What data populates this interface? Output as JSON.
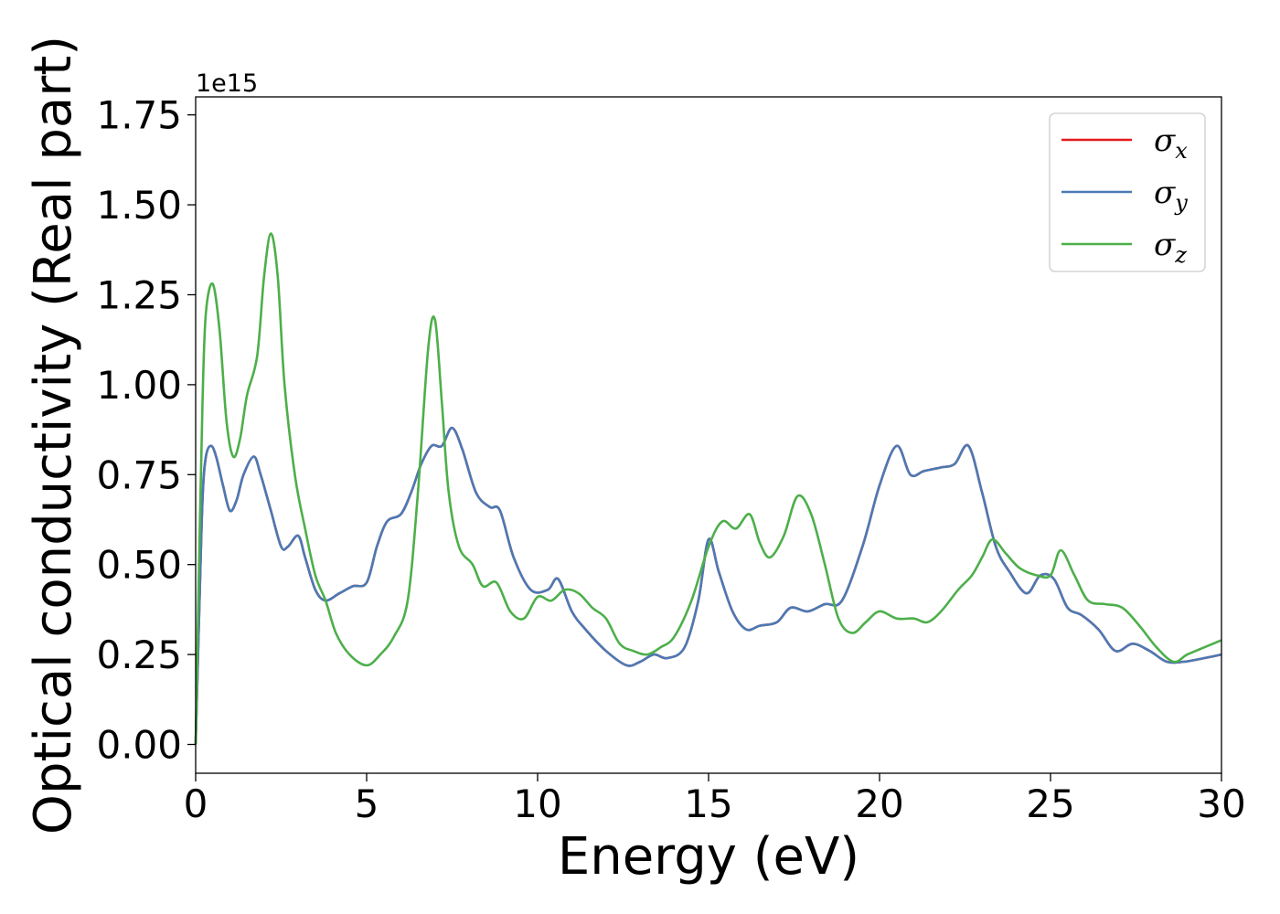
{
  "chart_data": {
    "type": "line",
    "xlabel": "Energy (eV)",
    "ylabel": "Optical conductivity (Real part)",
    "y_offset_label": "1e15",
    "xlim": [
      0,
      30
    ],
    "ylim": [
      -0.08,
      1.8
    ],
    "x_ticks": [
      0,
      5,
      10,
      15,
      20,
      25,
      30
    ],
    "x_tick_labels": [
      "0",
      "5",
      "10",
      "15",
      "20",
      "25",
      "30"
    ],
    "y_ticks": [
      0,
      0.25,
      0.5,
      0.75,
      1.0,
      1.25,
      1.5,
      1.75
    ],
    "y_tick_labels": [
      "0.00",
      "0.25",
      "0.50",
      "0.75",
      "1.00",
      "1.25",
      "1.50",
      "1.75"
    ],
    "grid": false,
    "legend_position": "top-right",
    "legend": [
      {
        "symbol": "σ",
        "subscript": "x",
        "color": "#e41a1c"
      },
      {
        "symbol": "σ",
        "subscript": "y",
        "color": "#4a7ab5"
      },
      {
        "symbol": "σ",
        "subscript": "z",
        "color": "#4daf4a"
      }
    ],
    "series": [
      {
        "key": "sigma_x",
        "color": "#e41a1c",
        "x": [
          0,
          0.1,
          0.2,
          0.3,
          0.45,
          0.6,
          0.8,
          1.0,
          1.2,
          1.4,
          1.7,
          1.9,
          2.2,
          2.5,
          2.7,
          3.0,
          3.2,
          3.5,
          3.8,
          4.2,
          4.6,
          5.0,
          5.3,
          5.6,
          6.0,
          6.3,
          6.6,
          6.9,
          7.2,
          7.5,
          7.8,
          8.2,
          8.6,
          8.9,
          9.3,
          9.8,
          10.3,
          10.6,
          11.0,
          11.4,
          12.0,
          12.6,
          13.0,
          13.4,
          13.8,
          14.3,
          14.7,
          15.0,
          15.3,
          15.7,
          16.1,
          16.5,
          17.0,
          17.4,
          17.9,
          18.4,
          18.9,
          19.5,
          20.0,
          20.5,
          20.9,
          21.3,
          21.8,
          22.2,
          22.6,
          23.0,
          23.4,
          23.8,
          24.3,
          24.7,
          25.1,
          25.5,
          25.9,
          26.4,
          26.9,
          27.4,
          27.9,
          28.4,
          28.9,
          29.5,
          30.0
        ],
        "values": [
          0.0,
          0.35,
          0.68,
          0.8,
          0.83,
          0.8,
          0.72,
          0.65,
          0.68,
          0.75,
          0.8,
          0.75,
          0.65,
          0.55,
          0.55,
          0.58,
          0.52,
          0.43,
          0.4,
          0.42,
          0.44,
          0.45,
          0.55,
          0.62,
          0.64,
          0.7,
          0.78,
          0.83,
          0.83,
          0.88,
          0.82,
          0.7,
          0.66,
          0.65,
          0.52,
          0.43,
          0.43,
          0.46,
          0.37,
          0.32,
          0.26,
          0.22,
          0.23,
          0.25,
          0.24,
          0.27,
          0.4,
          0.57,
          0.48,
          0.37,
          0.32,
          0.33,
          0.34,
          0.38,
          0.37,
          0.39,
          0.4,
          0.55,
          0.72,
          0.83,
          0.75,
          0.76,
          0.77,
          0.78,
          0.83,
          0.7,
          0.55,
          0.48,
          0.42,
          0.47,
          0.46,
          0.38,
          0.36,
          0.32,
          0.26,
          0.28,
          0.26,
          0.23,
          0.23,
          0.24,
          0.25
        ]
      },
      {
        "key": "sigma_y",
        "color": "#4a7ab5",
        "x": [
          0,
          0.1,
          0.2,
          0.3,
          0.45,
          0.6,
          0.8,
          1.0,
          1.2,
          1.4,
          1.7,
          1.9,
          2.2,
          2.5,
          2.7,
          3.0,
          3.2,
          3.5,
          3.8,
          4.2,
          4.6,
          5.0,
          5.3,
          5.6,
          6.0,
          6.3,
          6.6,
          6.9,
          7.2,
          7.5,
          7.8,
          8.2,
          8.6,
          8.9,
          9.3,
          9.8,
          10.3,
          10.6,
          11.0,
          11.4,
          12.0,
          12.6,
          13.0,
          13.4,
          13.8,
          14.3,
          14.7,
          15.0,
          15.3,
          15.7,
          16.1,
          16.5,
          17.0,
          17.4,
          17.9,
          18.4,
          18.9,
          19.5,
          20.0,
          20.5,
          20.9,
          21.3,
          21.8,
          22.2,
          22.6,
          23.0,
          23.4,
          23.8,
          24.3,
          24.7,
          25.1,
          25.5,
          25.9,
          26.4,
          26.9,
          27.4,
          27.9,
          28.4,
          28.9,
          29.5,
          30.0
        ],
        "values": [
          0.0,
          0.35,
          0.68,
          0.8,
          0.83,
          0.8,
          0.72,
          0.65,
          0.68,
          0.75,
          0.8,
          0.75,
          0.65,
          0.55,
          0.55,
          0.58,
          0.52,
          0.43,
          0.4,
          0.42,
          0.44,
          0.45,
          0.55,
          0.62,
          0.64,
          0.7,
          0.78,
          0.83,
          0.83,
          0.88,
          0.82,
          0.7,
          0.66,
          0.65,
          0.52,
          0.43,
          0.43,
          0.46,
          0.37,
          0.32,
          0.26,
          0.22,
          0.23,
          0.25,
          0.24,
          0.27,
          0.4,
          0.57,
          0.48,
          0.37,
          0.32,
          0.33,
          0.34,
          0.38,
          0.37,
          0.39,
          0.4,
          0.55,
          0.72,
          0.83,
          0.75,
          0.76,
          0.77,
          0.78,
          0.83,
          0.7,
          0.55,
          0.48,
          0.42,
          0.47,
          0.46,
          0.38,
          0.36,
          0.32,
          0.26,
          0.28,
          0.26,
          0.23,
          0.23,
          0.24,
          0.25
        ]
      },
      {
        "key": "sigma_z",
        "color": "#4daf4a",
        "x": [
          0,
          0.1,
          0.2,
          0.3,
          0.5,
          0.7,
          0.9,
          1.1,
          1.3,
          1.5,
          1.8,
          2.0,
          2.2,
          2.4,
          2.6,
          2.9,
          3.2,
          3.5,
          3.8,
          4.1,
          4.5,
          5.0,
          5.4,
          5.8,
          6.2,
          6.5,
          6.8,
          7.0,
          7.2,
          7.4,
          7.7,
          8.1,
          8.4,
          8.8,
          9.2,
          9.6,
          10.0,
          10.4,
          10.8,
          11.2,
          11.6,
          12.0,
          12.4,
          12.8,
          13.2,
          13.6,
          14.0,
          14.5,
          15.0,
          15.4,
          15.8,
          16.2,
          16.5,
          16.8,
          17.2,
          17.6,
          18.0,
          18.4,
          18.8,
          19.2,
          19.6,
          20.0,
          20.5,
          21.0,
          21.4,
          21.8,
          22.3,
          22.7,
          23.0,
          23.3,
          23.7,
          24.1,
          24.6,
          25.0,
          25.3,
          25.7,
          26.1,
          26.6,
          27.1,
          27.6,
          28.1,
          28.6,
          29.0,
          29.5,
          30.0
        ],
        "values": [
          0.0,
          0.5,
          0.95,
          1.2,
          1.28,
          1.15,
          0.9,
          0.8,
          0.85,
          0.97,
          1.08,
          1.3,
          1.42,
          1.3,
          1.0,
          0.75,
          0.6,
          0.47,
          0.4,
          0.31,
          0.25,
          0.22,
          0.25,
          0.3,
          0.4,
          0.7,
          1.1,
          1.18,
          0.95,
          0.7,
          0.55,
          0.5,
          0.44,
          0.45,
          0.37,
          0.35,
          0.41,
          0.4,
          0.43,
          0.42,
          0.38,
          0.35,
          0.28,
          0.26,
          0.25,
          0.27,
          0.3,
          0.4,
          0.55,
          0.62,
          0.6,
          0.64,
          0.56,
          0.52,
          0.58,
          0.69,
          0.64,
          0.5,
          0.35,
          0.31,
          0.34,
          0.37,
          0.35,
          0.35,
          0.34,
          0.37,
          0.43,
          0.47,
          0.52,
          0.57,
          0.53,
          0.49,
          0.47,
          0.47,
          0.54,
          0.47,
          0.4,
          0.39,
          0.38,
          0.33,
          0.27,
          0.23,
          0.25,
          0.27,
          0.29
        ]
      }
    ]
  }
}
